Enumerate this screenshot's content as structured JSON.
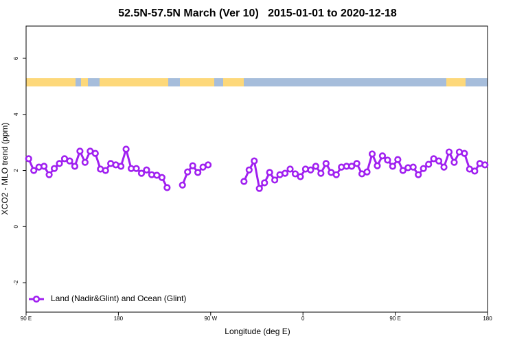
{
  "chart_data": {
    "type": "line",
    "title": "52.5N-57.5N March (Ver 10)   2015-01-01 to 2020-12-18",
    "x_label": "Longitude (deg E)",
    "y_label": "XCO2 - MLO trend (ppm)",
    "x": [
      92.5,
      97.5,
      102.5,
      107.5,
      112.5,
      117.5,
      122.5,
      127.5,
      132.5,
      137.5,
      142.5,
      147.5,
      152.5,
      157.5,
      162.5,
      167.5,
      172.5,
      177.5,
      182.5,
      187.5,
      192.5,
      197.5,
      202.5,
      207.5,
      212.5,
      217.5,
      222.5,
      227.5,
      232.5,
      237.5,
      242.5,
      247.5,
      252.5,
      257.5,
      262.5,
      267.5,
      272.5,
      277.5,
      282.5,
      287.5,
      292.5,
      297.5,
      302.5,
      307.5,
      312.5,
      317.5,
      322.5,
      327.5,
      332.5,
      337.5,
      342.5,
      347.5,
      352.5,
      357.5,
      362.5,
      367.5,
      372.5,
      377.5,
      382.5,
      387.5,
      392.5,
      397.5,
      402.5,
      407.5,
      412.5,
      417.5,
      422.5,
      427.5,
      432.5,
      437.5,
      442.5,
      447.5,
      452.5,
      457.5,
      462.5,
      467.5,
      472.5,
      477.5,
      482.5,
      487.5,
      492.5,
      497.5,
      502.5,
      507.5,
      512.5,
      517.5,
      522.5,
      527.5,
      532.5,
      537.5
    ],
    "series": [
      {
        "name": "Land (Nadir&Glint) and Ocean (Glint)",
        "color": "#a020f0",
        "values": [
          2.42,
          2.0,
          2.12,
          2.15,
          1.85,
          2.07,
          2.25,
          2.42,
          2.34,
          2.15,
          2.69,
          2.29,
          2.69,
          2.61,
          2.05,
          2.0,
          2.25,
          2.2,
          2.15,
          2.76,
          2.07,
          2.07,
          1.9,
          2.02,
          1.85,
          1.83,
          1.75,
          1.39,
          null,
          null,
          1.48,
          1.95,
          2.17,
          1.93,
          2.12,
          2.2,
          null,
          null,
          null,
          null,
          null,
          null,
          1.61,
          2.02,
          2.34,
          1.36,
          1.56,
          1.93,
          1.66,
          1.85,
          1.9,
          2.05,
          1.88,
          1.78,
          2.05,
          2.02,
          2.15,
          1.9,
          2.25,
          1.93,
          1.85,
          2.12,
          2.15,
          2.15,
          2.25,
          1.88,
          1.95,
          2.59,
          2.17,
          2.52,
          2.37,
          2.15,
          2.39,
          2.0,
          2.1,
          2.12,
          1.85,
          2.07,
          2.22,
          2.42,
          2.34,
          2.12,
          2.66,
          2.29,
          2.66,
          2.61,
          2.05,
          1.98,
          2.25,
          2.2
        ]
      }
    ],
    "xlim": [
      90,
      540
    ],
    "xticks": [
      {
        "value": 90,
        "label": "90 E"
      },
      {
        "value": 180,
        "label": "180"
      },
      {
        "value": 270,
        "label": "90 W"
      },
      {
        "value": 360,
        "label": "0"
      },
      {
        "value": 450,
        "label": "90 E"
      },
      {
        "value": 540,
        "label": "180"
      }
    ],
    "ylim": [
      -3.05,
      7.15
    ],
    "yticks": [
      -2,
      0,
      2,
      4,
      6
    ],
    "legend": "bottom-left"
  }
}
